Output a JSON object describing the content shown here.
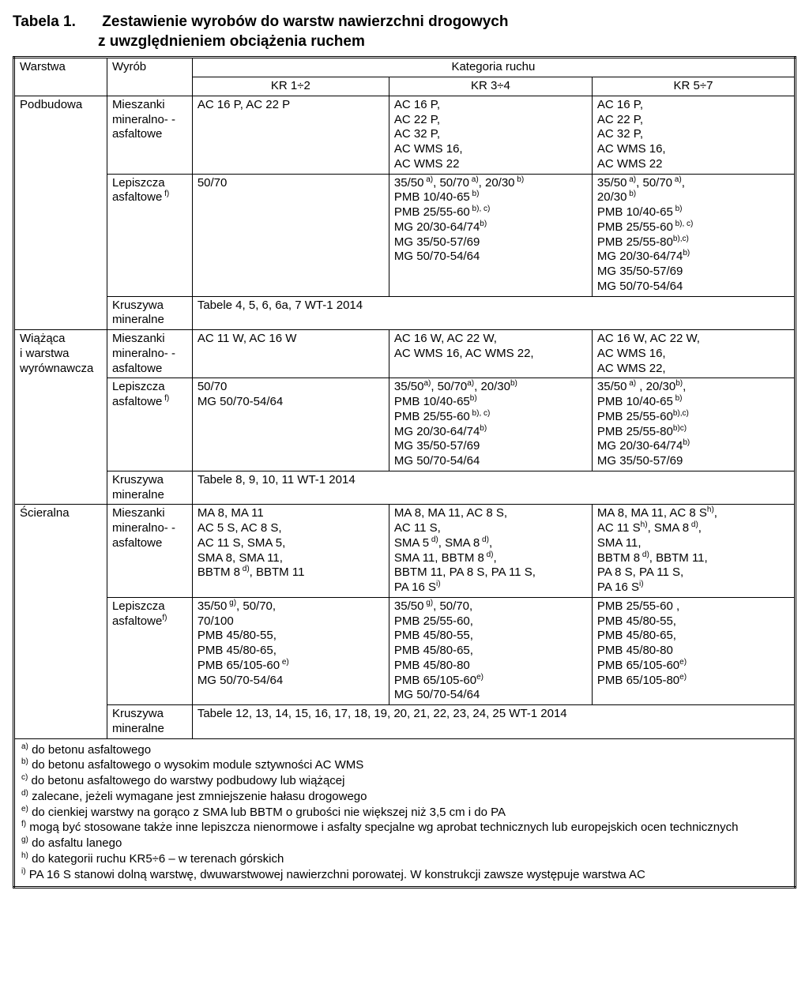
{
  "title": {
    "label": "Tabela 1.",
    "line1": "Zestawienie wyrobów do warstw nawierzchni drogowych",
    "line2": "z uwzględnieniem obciążenia ruchem"
  },
  "header": {
    "warstwa": "Warstwa",
    "wyrob": "Wyrób",
    "kategoria": "Kategoria ruchu",
    "kr12": "KR 1÷2",
    "kr34": "KR 3÷4",
    "kr57": "KR 5÷7"
  },
  "rows": {
    "podbudowa": "Podbudowa",
    "podbudowa_m_wyrob": "Mieszanki mineralno- -asfaltowe",
    "podbudowa_m_kr12": "AC 16 P, AC 22 P",
    "podbudowa_m_kr34": "AC 16 P,\nAC 22 P,\nAC 32 P,\nAC WMS 16,\nAC WMS 22",
    "podbudowa_m_kr57": "AC 16 P,\nAC 22 P,\nAC 32 P,\nAC WMS 16,\nAC WMS 22",
    "podbudowa_l_wyrob_html": "Lepiszcza asfaltowe<sup> f)</sup>",
    "podbudowa_l_kr12": "50/70",
    "podbudowa_l_kr34_html": "35/50<sup> a)</sup>, 50/70<sup> a)</sup>, 20/30<sup> b)</sup><br>PMB 10/40-65<sup> b)</sup><br>PMB 25/55-60<sup> b), c)</sup><br>MG 20/30-64/74<sup>b)</sup><br>MG 35/50-57/69<br>MG 50/70-54/64",
    "podbudowa_l_kr57_html": "35/50<sup> a)</sup>, 50/70<sup> a)</sup>,<br>20/30<sup> b)</sup><br>PMB 10/40-65<sup> b)</sup><br>PMB 25/55-60<sup> b), c)</sup><br>PMB 25/55-80<sup>b),c)</sup><br>MG 20/30-64/74<sup>b)</sup><br>MG 35/50-57/69<br>MG 50/70-54/64",
    "podbudowa_k_wyrob": "Kruszywa mineralne",
    "podbudowa_k_span": "Tabele 4, 5, 6, 6a, 7  WT-1 2014",
    "wiazaca": "Wiążąca\ni warstwa\nwyrównawcza",
    "wiazaca_m_wyrob": "Mieszanki mineralno- -asfaltowe",
    "wiazaca_m_kr12": "AC 11 W, AC 16 W",
    "wiazaca_m_kr34": "AC 16 W, AC 22 W,\nAC WMS 16, AC WMS 22,",
    "wiazaca_m_kr57": "AC 16 W, AC 22 W,\nAC WMS 16,\nAC WMS 22,",
    "wiazaca_l_wyrob_html": "Lepiszcza asfaltowe<sup> f)</sup>",
    "wiazaca_l_kr12": "50/70\nMG 50/70-54/64",
    "wiazaca_l_kr34_html": "35/50<sup>a)</sup>, 50/70<sup>a)</sup>, 20/30<sup>b)</sup><br>PMB 10/40-65<sup>b)</sup><br>PMB 25/55-60<sup> b), c)</sup><br>MG 20/30-64/74<sup>b)</sup><br>MG 35/50-57/69<br>MG 50/70-54/64",
    "wiazaca_l_kr57_html": "35/50<sup> a)</sup> , 20/30<sup>b)</sup>,<br>PMB 10/40-65<sup> b)</sup><br>PMB 25/55-60<sup>b),c)</sup><br>PMB 25/55-80<sup>b)c)</sup><br>MG 20/30-64/74<sup>b)</sup><br>MG 35/50-57/69",
    "wiazaca_k_wyrob": "Kruszywa mineralne",
    "wiazaca_k_span": "Tabele  8, 9, 10, 11  WT-1 2014",
    "scieralna": "Ścieralna",
    "scieralna_m_wyrob": "Mieszanki mineralno- -asfaltowe",
    "scieralna_m_kr12_html": "MA 8, MA 11<br>AC 5 S, AC 8 S,<br>AC 11 S, SMA 5,<br>SMA 8, SMA 11,<br>BBTM 8<sup> d)</sup>, BBTM 11",
    "scieralna_m_kr34_html": "MA 8, MA 11, AC 8 S,<br>AC 11 S,<br>SMA 5<sup> d)</sup>, SMA 8<sup> d)</sup>,<br>SMA 11, BBTM 8<sup> d)</sup>,<br>BBTM 11, PA 8 S, PA 11 S,<br>PA 16 S<sup>i)</sup>",
    "scieralna_m_kr57_html": "MA 8, MA 11, AC 8 S<sup>h)</sup>,<br>AC 11 S<sup>h)</sup>, SMA 8<sup> d)</sup>,<br>SMA 11,<br>BBTM 8<sup> d)</sup>, BBTM 11,<br>PA 8 S, PA 11 S,<br>PA 16 S<sup>i)</sup>",
    "scieralna_l_wyrob_html": "Lepiszcza asfaltowe<sup>f)</sup>",
    "scieralna_l_kr12_html": "35/50<sup> g)</sup>, 50/70,<br>70/100<br>PMB 45/80-55,<br>PMB 45/80-65,<br>PMB 65/105-60<sup> e)</sup><br>MG 50/70-54/64",
    "scieralna_l_kr34_html": "35/50<sup> g)</sup>, 50/70,<br>PMB 25/55-60,<br>PMB 45/80-55,<br>PMB 45/80-65,<br>PMB 45/80-80<br>PMB 65/105-60<sup>e)</sup><br>MG 50/70-54/64",
    "scieralna_l_kr57_html": "PMB 25/55-60 ,<br>PMB 45/80-55,<br>PMB 45/80-65,<br>PMB 45/80-80<br>PMB 65/105-60<sup>e)</sup><br>PMB 65/105-80<sup>e)</sup>",
    "scieralna_k_wyrob": "Kruszywa mineralne",
    "scieralna_k_span": "Tabele  12, 13, 14, 15, 16, 17, 18, 19, 20, 21, 22, 23, 24, 25  WT-1 2014"
  },
  "notes": {
    "a": "do betonu asfaltowego",
    "b": "do betonu asfaltowego o wysokim module sztywności AC WMS",
    "c": "do betonu asfaltowego do warstwy podbudowy lub wiążącej",
    "d": "zalecane, jeżeli wymagane jest zmniejszenie hałasu drogowego",
    "e": "do cienkiej warstwy na gorąco z SMA lub BBTM o grubości nie większej niż 3,5 cm i do PA",
    "f": "mogą być stosowane także inne lepiszcza nienormowe i asfalty specjalne wg aprobat technicznych lub europejskich ocen technicznych",
    "g": "do asfaltu lanego",
    "h": "do kategorii ruchu KR5÷6 – w terenach górskich",
    "i": "PA 16 S stanowi dolną warstwę, dwuwarstwowej nawierzchni porowatej. W konstrukcji zawsze występuje warstwa AC"
  }
}
